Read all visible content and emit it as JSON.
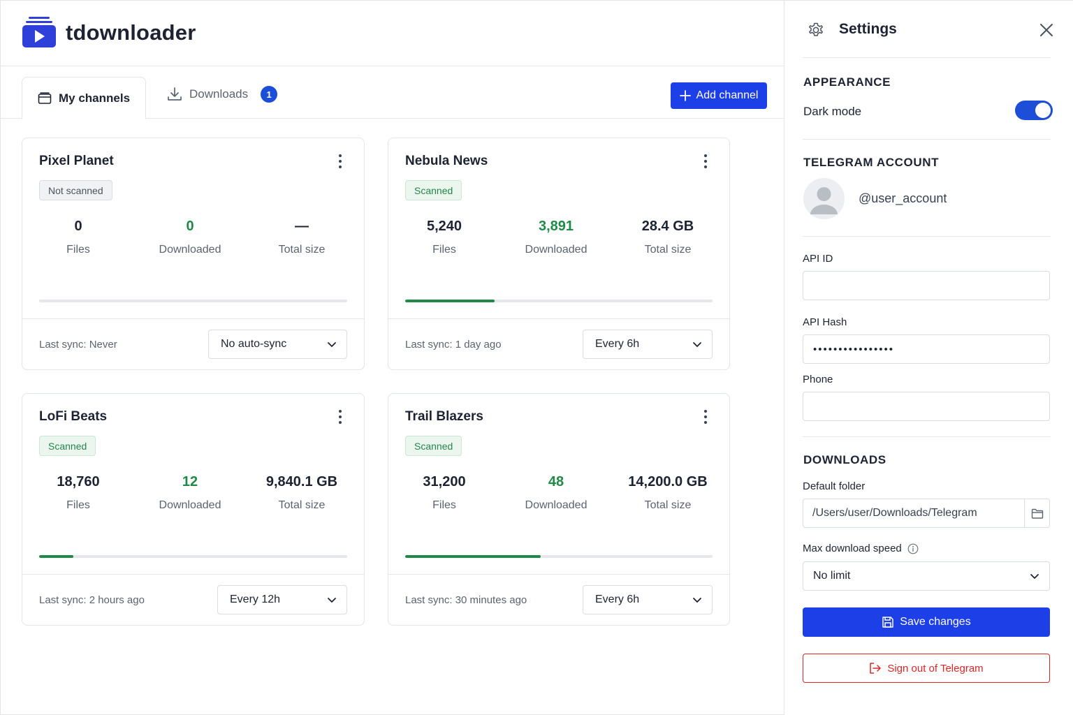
{
  "app": {
    "title": "tdownloader",
    "accent": "#1d3fe8"
  },
  "tabs": [
    {
      "label": "My channels",
      "icon": "folder-icon",
      "active": true
    },
    {
      "label": "Downloads",
      "icon": "download-icon",
      "badge": "1",
      "active": false
    }
  ],
  "toolbar": {
    "add_label": "Add channel"
  },
  "channels": [
    {
      "name": "Pixel Planet",
      "status": "Not scanned",
      "files": "0",
      "downloaded": "0",
      "total_size": "—",
      "files_label": "Files",
      "downloaded_label": "Downloaded",
      "size_label": "Total size",
      "progress": 0,
      "last_sync": "Last sync: Never",
      "sync": "No auto-sync"
    },
    {
      "name": "Nebula News",
      "status": "Scanned",
      "files": "5,240",
      "downloaded": "3,891",
      "total_size": "28.4 GB",
      "files_label": "Files",
      "downloaded_label": "Downloaded",
      "size_label": "Total size",
      "progress": 0.29,
      "last_sync": "Last sync: 1 day ago",
      "sync": "Every 6h"
    },
    {
      "name": "LoFi Beats",
      "status": "Scanned",
      "files": "18,760",
      "downloaded": "12",
      "total_size": "9,840.1 GB",
      "files_label": "Files",
      "downloaded_label": "Downloaded",
      "size_label": "Total size",
      "progress": 0.11,
      "last_sync": "Last sync: 2 hours ago",
      "sync": "Every 12h"
    },
    {
      "name": "Trail Blazers",
      "status": "Scanned",
      "files": "31,200",
      "downloaded": "48",
      "total_size": "14,200.0 GB",
      "files_label": "Files",
      "downloaded_label": "Downloaded",
      "size_label": "Total size",
      "progress": 0.44,
      "last_sync": "Last sync: 30 minutes ago",
      "sync": "Every 6h"
    }
  ],
  "settings": {
    "title": "Settings",
    "appearance": {
      "heading": "APPEARANCE",
      "dark_mode_label": "Dark mode",
      "dark_mode": true
    },
    "account": {
      "heading": "TELEGRAM ACCOUNT",
      "username": "@user_account"
    },
    "api_id": {
      "label": "API ID",
      "value": ""
    },
    "api_hash": {
      "label": "API Hash",
      "value": "••••••••••••••••"
    },
    "phone": {
      "label": "Phone",
      "value": ""
    },
    "downloads": {
      "heading": "DOWNLOADS",
      "folder_label": "Default folder",
      "folder": "/Users/user/Downloads/Telegram",
      "speed_label": "Max download speed",
      "speed": "No limit"
    },
    "save_label": "Save changes",
    "signout_label": "Sign out of Telegram"
  }
}
